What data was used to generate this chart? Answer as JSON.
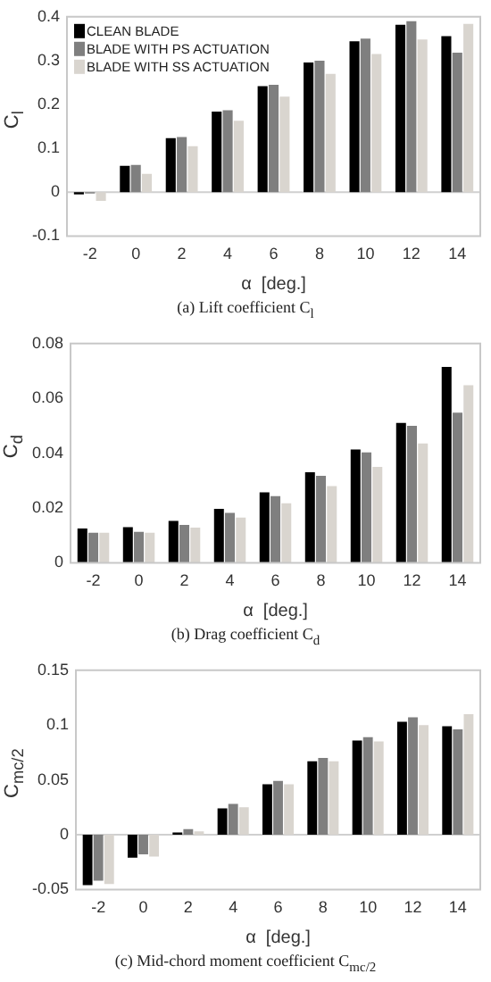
{
  "chart_data": [
    {
      "type": "bar",
      "ylabel": "C$_{l}$",
      "xlabel": "α  [deg.]",
      "annotations": [
        "(a) Lift coefficient C$_{l}$"
      ],
      "categories": [
        "-2",
        "0",
        "2",
        "4",
        "6",
        "8",
        "10",
        "12",
        "14"
      ],
      "ylim": [
        -0.1,
        0.4
      ],
      "yticks": [
        -0.1,
        0,
        0.1,
        0.2,
        0.3,
        0.4
      ],
      "grid": false,
      "legend": "top left",
      "ref_lines": [
        {
          "axis": "y",
          "value": 0,
          "color": "#d0d0d0"
        }
      ],
      "series": [
        {
          "name": "CLEAN BLADE",
          "color": "#000000",
          "values": [
            -0.005,
            0.06,
            0.123,
            0.184,
            0.242,
            0.296,
            0.344,
            0.382,
            0.356
          ]
        },
        {
          "name": "BLADE WITH PS ACTUATION",
          "color": "#7f7f7f",
          "values": [
            -0.003,
            0.062,
            0.126,
            0.187,
            0.245,
            0.3,
            0.35,
            0.39,
            0.318
          ]
        },
        {
          "name": "BLADE WITH SS ACTUATION",
          "color": "#d9d5cf",
          "values": [
            -0.02,
            0.042,
            0.105,
            0.163,
            0.218,
            0.27,
            0.315,
            0.348,
            0.384
          ]
        }
      ]
    },
    {
      "type": "bar",
      "ylabel": "C$_{d}$",
      "xlabel": "α  [deg.]",
      "annotations": [
        "(b) Drag coefficient C$_{d}$"
      ],
      "categories": [
        "-2",
        "0",
        "2",
        "4",
        "6",
        "8",
        "10",
        "12",
        "14"
      ],
      "ylim": [
        0,
        0.08
      ],
      "yticks": [
        0,
        0.02,
        0.04,
        0.06,
        0.08
      ],
      "grid": false,
      "legend": false,
      "series": [
        {
          "color": "#000000",
          "values": [
            0.0125,
            0.013,
            0.0153,
            0.0197,
            0.0257,
            0.033,
            0.0413,
            0.051,
            0.0715
          ]
        },
        {
          "color": "#7f7f7f",
          "values": [
            0.011,
            0.0113,
            0.0138,
            0.0182,
            0.0243,
            0.0317,
            0.0403,
            0.05,
            0.0548
          ]
        },
        {
          "color": "#d9d5cf",
          "values": [
            0.011,
            0.011,
            0.0128,
            0.0165,
            0.0217,
            0.028,
            0.035,
            0.0435,
            0.0648
          ]
        }
      ]
    },
    {
      "type": "bar",
      "ylabel": "C$_{m}$$_{c/2}$",
      "xlabel": "α  [deg.]",
      "annotations": [
        "(c) Mid-chord moment coefficient C$_{m}$$_{c/2}$"
      ],
      "categories": [
        "-2",
        "0",
        "2",
        "4",
        "6",
        "8",
        "10",
        "12",
        "14"
      ],
      "ylim": [
        -0.05,
        0.15
      ],
      "yticks": [
        -0.05,
        0,
        0.05,
        0.1,
        0.15
      ],
      "grid": false,
      "legend": false,
      "ref_lines": [
        {
          "axis": "y",
          "value": 0,
          "color": "#d0d0d0"
        }
      ],
      "series": [
        {
          "color": "#000000",
          "values": [
            -0.046,
            -0.021,
            0.002,
            0.024,
            0.046,
            0.067,
            0.086,
            0.103,
            0.099
          ]
        },
        {
          "color": "#7f7f7f",
          "values": [
            -0.042,
            -0.018,
            0.005,
            0.028,
            0.049,
            0.07,
            0.089,
            0.107,
            0.096
          ]
        },
        {
          "color": "#d9d5cf",
          "values": [
            -0.045,
            -0.02,
            0.003,
            0.025,
            0.046,
            0.067,
            0.085,
            0.1,
            0.11
          ]
        }
      ]
    }
  ]
}
